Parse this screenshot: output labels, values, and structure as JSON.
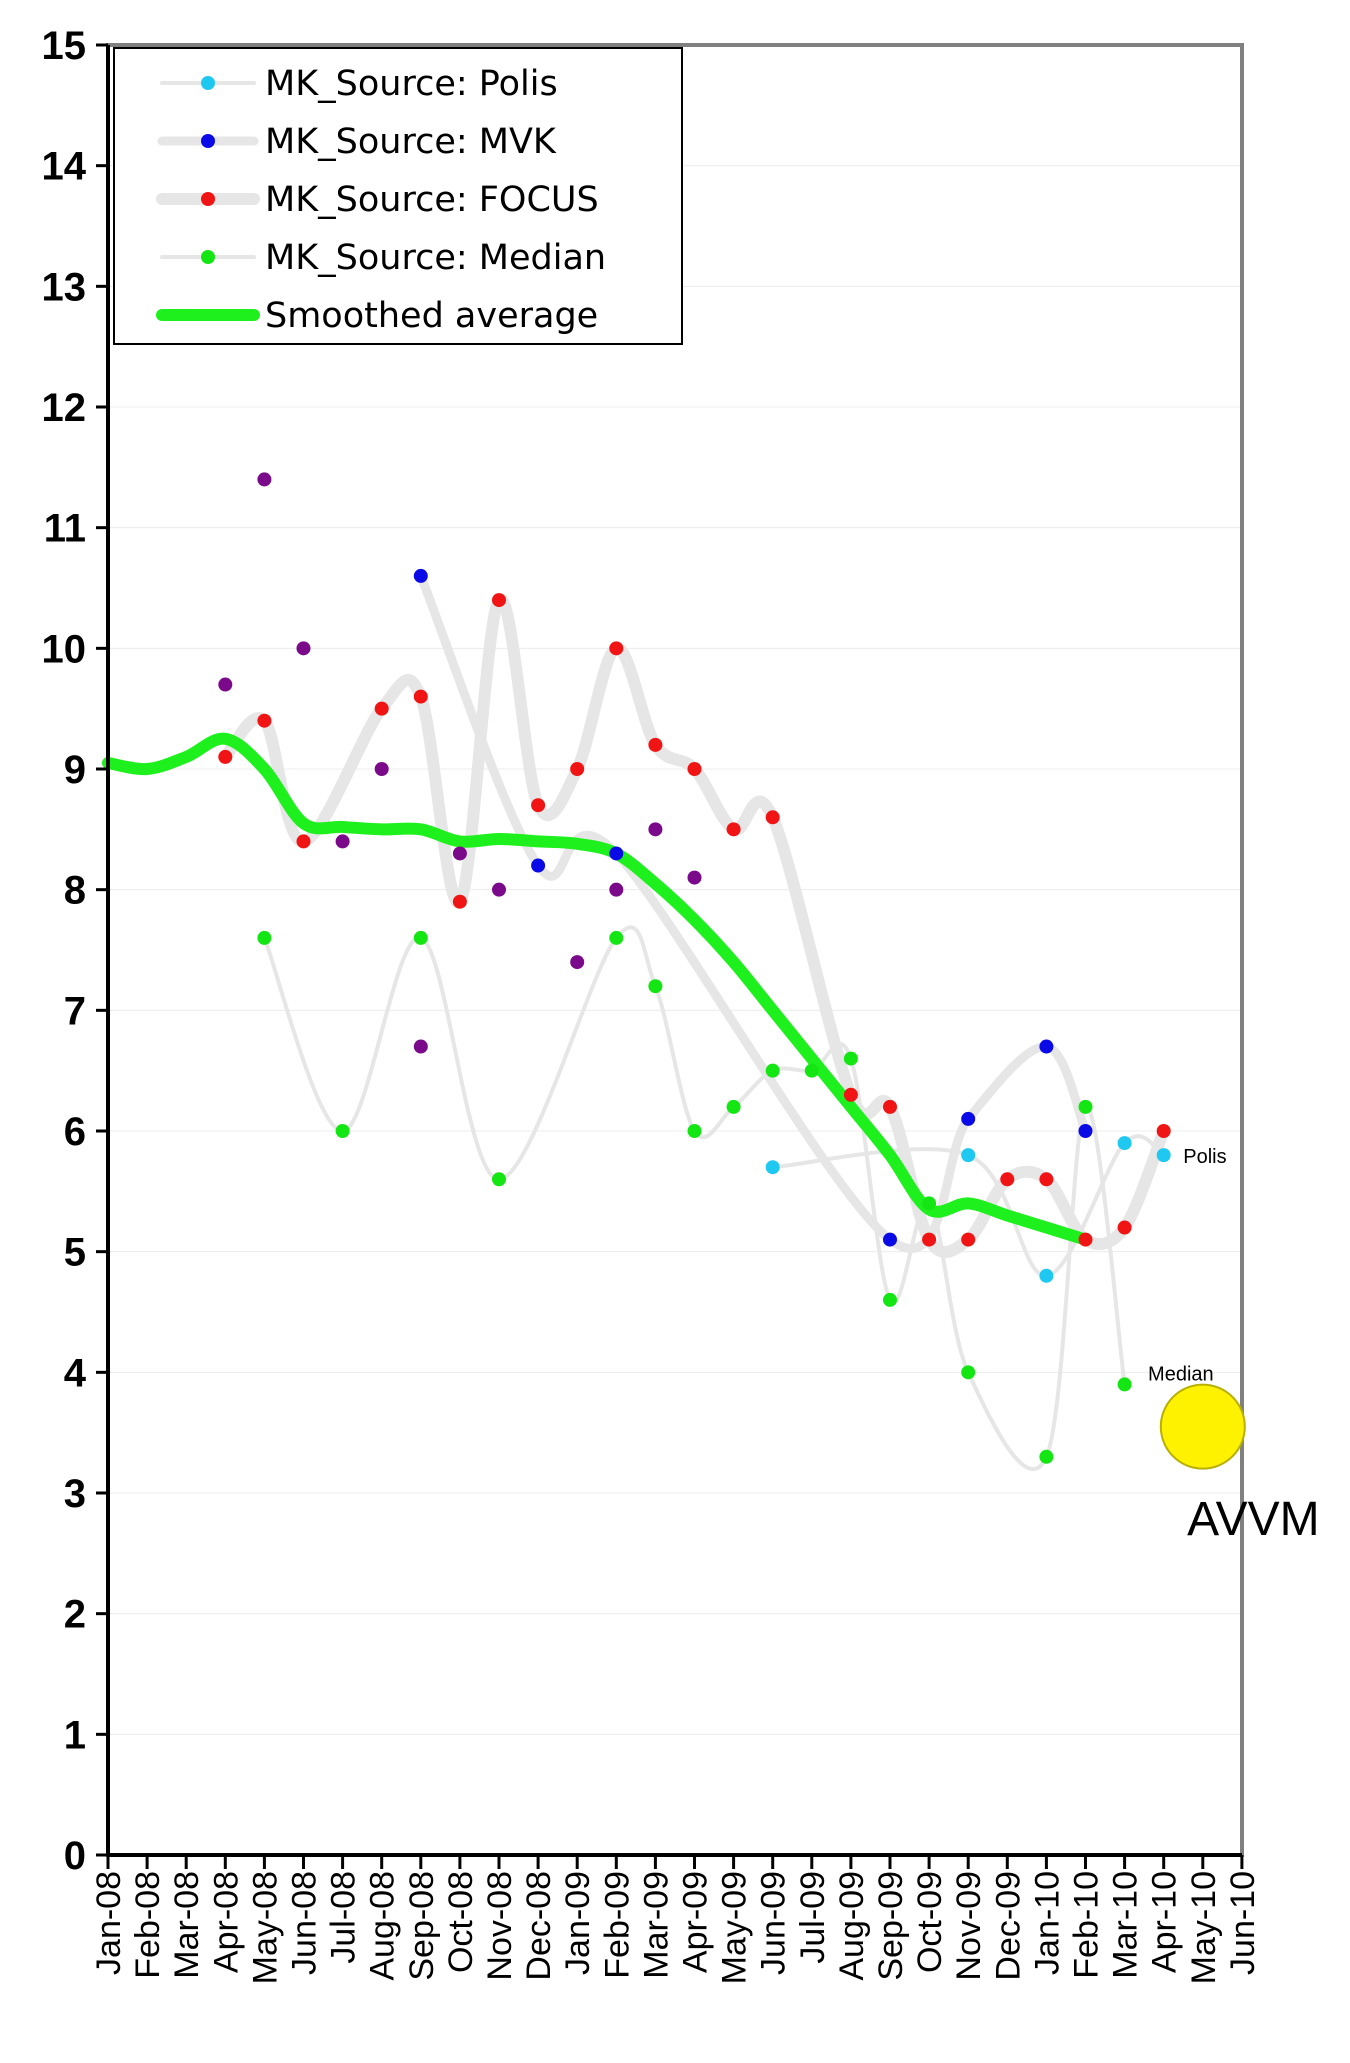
{
  "chart_data": {
    "type": "line",
    "title": "",
    "xlabel": "",
    "ylabel": "",
    "ylim": [
      0,
      15
    ],
    "yticks": [
      "0",
      "1",
      "2",
      "3",
      "4",
      "5",
      "6",
      "7",
      "8",
      "9",
      "10",
      "11",
      "12",
      "13",
      "14",
      "15"
    ],
    "categories": [
      "Jan-08",
      "Feb-08",
      "Mar-08",
      "Apr-08",
      "May-08",
      "Jun-08",
      "Jul-08",
      "Aug-08",
      "Sep-08",
      "Oct-08",
      "Nov-08",
      "Dec-08",
      "Jan-09",
      "Feb-09",
      "Mar-09",
      "Apr-09",
      "May-09",
      "Jun-09",
      "Jul-09",
      "Aug-09",
      "Sep-09",
      "Oct-09",
      "Nov-09",
      "Dec-09",
      "Jan-10",
      "Feb-10",
      "Mar-10",
      "Apr-10",
      "May-10",
      "Jun-10"
    ],
    "grid": true,
    "legend_position": "top-left",
    "legend": [
      {
        "label": "MK_Source: Polis",
        "color": "#1ec8f0",
        "line": "#e6e6e6",
        "line_width": 4,
        "style": "dot"
      },
      {
        "label": "MK_Source: MVK",
        "color": "#0a0ae6",
        "line": "#e6e6e6",
        "line_width": 9,
        "style": "dot"
      },
      {
        "label": "MK_Source: FOCUS",
        "color": "#f01414",
        "line": "#e6e6e6",
        "line_width": 12,
        "style": "dot"
      },
      {
        "label": "MK_Source: Median",
        "color": "#14e614",
        "line": "#e6e6e6",
        "line_width": 4,
        "style": "dot"
      },
      {
        "label": "Smoothed average",
        "color": "#1ef01e",
        "line": "#1ef01e",
        "line_width": 12,
        "style": "line"
      }
    ],
    "series": [
      {
        "name": "MK_Source: Polis",
        "color": "#1ec8f0",
        "line_width": 4,
        "points": [
          [
            17,
            5.7
          ],
          [
            22,
            5.8
          ],
          [
            24,
            4.8
          ],
          [
            26,
            5.9
          ],
          [
            27,
            5.8
          ]
        ]
      },
      {
        "name": "MK_Source: MVK",
        "color": "#0a0ae6",
        "line_width": 9,
        "points": [
          [
            8,
            10.6
          ],
          [
            11,
            8.2
          ],
          [
            13,
            8.3
          ],
          [
            20,
            5.1
          ],
          [
            22,
            6.1
          ],
          [
            24,
            6.7
          ],
          [
            25,
            6.0
          ]
        ]
      },
      {
        "name": "MK_Source: FOCUS",
        "color": "#f01414",
        "line_width": 12,
        "points": [
          [
            3,
            9.1
          ],
          [
            4,
            9.4
          ],
          [
            5,
            8.4
          ],
          [
            7,
            9.5
          ],
          [
            8,
            9.6
          ],
          [
            9,
            7.9
          ],
          [
            10,
            10.4
          ],
          [
            11,
            8.7
          ],
          [
            12,
            9.0
          ],
          [
            13,
            10.0
          ],
          [
            14,
            9.2
          ],
          [
            15,
            9.0
          ],
          [
            16,
            8.5
          ],
          [
            17,
            8.6
          ],
          [
            19,
            6.3
          ],
          [
            20,
            6.2
          ],
          [
            21,
            5.1
          ],
          [
            22,
            5.1
          ],
          [
            23,
            5.6
          ],
          [
            24,
            5.6
          ],
          [
            25,
            5.1
          ],
          [
            26,
            5.2
          ],
          [
            27,
            6.0
          ]
        ]
      },
      {
        "name": "MK_Source: Median",
        "color": "#14e614",
        "line_width": 4,
        "points": [
          [
            4,
            7.6
          ],
          [
            6,
            6.0
          ],
          [
            8,
            7.6
          ],
          [
            10,
            5.6
          ],
          [
            13,
            7.6
          ],
          [
            14,
            7.2
          ],
          [
            15,
            6.0
          ],
          [
            16,
            6.2
          ],
          [
            17,
            6.5
          ],
          [
            18,
            6.5
          ],
          [
            19,
            6.6
          ],
          [
            20,
            4.6
          ],
          [
            21,
            5.4
          ],
          [
            22,
            4.0
          ],
          [
            24,
            3.3
          ],
          [
            25,
            6.2
          ],
          [
            26,
            3.9
          ]
        ]
      },
      {
        "name": "",
        "color": "#7a0a8a",
        "line_width": 0,
        "points": [
          [
            3,
            9.7
          ],
          [
            4,
            11.4
          ],
          [
            5,
            10.0
          ],
          [
            6,
            8.4
          ],
          [
            7,
            9.0
          ],
          [
            8,
            6.7
          ],
          [
            9,
            8.3
          ],
          [
            10,
            8.0
          ],
          [
            12,
            7.4
          ],
          [
            13,
            8.0
          ],
          [
            14,
            8.5
          ],
          [
            15,
            8.1
          ]
        ]
      },
      {
        "name": "Smoothed average",
        "color": "#1ef01e",
        "line_width": 12,
        "style": "line",
        "points": [
          [
            0,
            9.05
          ],
          [
            1,
            9.0
          ],
          [
            2,
            9.1
          ],
          [
            3,
            9.25
          ],
          [
            4,
            9.0
          ],
          [
            5,
            8.55
          ],
          [
            6,
            8.52
          ],
          [
            7,
            8.5
          ],
          [
            8,
            8.5
          ],
          [
            9,
            8.4
          ],
          [
            10,
            8.42
          ],
          [
            11,
            8.4
          ],
          [
            12,
            8.38
          ],
          [
            13,
            8.3
          ],
          [
            14,
            8.05
          ],
          [
            15,
            7.75
          ],
          [
            16,
            7.4
          ],
          [
            17,
            7.0
          ],
          [
            18,
            6.6
          ],
          [
            19,
            6.2
          ],
          [
            20,
            5.8
          ],
          [
            21,
            5.35
          ],
          [
            22,
            5.4
          ],
          [
            23,
            5.3
          ],
          [
            24,
            5.2
          ],
          [
            25,
            5.1
          ]
        ]
      }
    ],
    "annotations": [
      {
        "text": "Polis",
        "x": 27.5,
        "y": 5.8,
        "size": "small"
      },
      {
        "text": "Median",
        "x": 26.6,
        "y": 4.0,
        "size": "small"
      },
      {
        "text": "AVVM",
        "x": 27.6,
        "y": 2.9,
        "size": "big"
      }
    ],
    "marker": {
      "name": "AVVM",
      "x": 28,
      "y": 3.55,
      "color": "#fff200"
    }
  }
}
